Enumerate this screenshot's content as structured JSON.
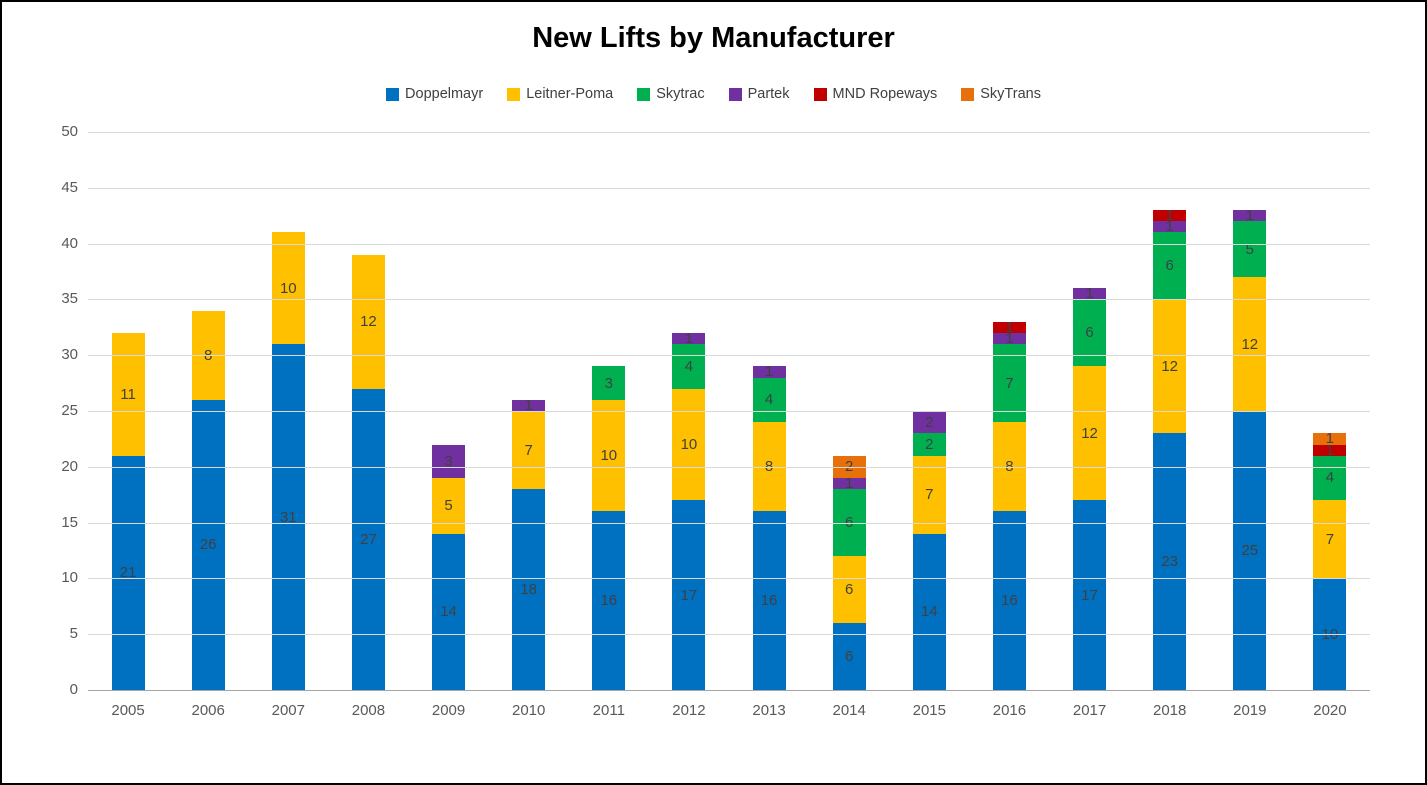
{
  "chart_data": {
    "type": "bar",
    "stacked": true,
    "title": "New Lifts by Manufacturer",
    "xlabel": "",
    "ylabel": "",
    "ylim": [
      0,
      50
    ],
    "ytick_step": 5,
    "grid": true,
    "legend_position": "top",
    "categories": [
      "2005",
      "2006",
      "2007",
      "2008",
      "2009",
      "2010",
      "2011",
      "2012",
      "2013",
      "2014",
      "2015",
      "2016",
      "2017",
      "2018",
      "2019",
      "2020"
    ],
    "series": [
      {
        "name": "Doppelmayr",
        "color": "#0070C0",
        "values": [
          21,
          26,
          31,
          27,
          14,
          18,
          16,
          17,
          16,
          6,
          14,
          16,
          17,
          23,
          25,
          10
        ]
      },
      {
        "name": "Leitner-Poma",
        "color": "#FFC000",
        "values": [
          11,
          8,
          10,
          12,
          5,
          7,
          10,
          10,
          8,
          6,
          7,
          8,
          12,
          12,
          12,
          7
        ]
      },
      {
        "name": "Skytrac",
        "color": "#00B050",
        "values": [
          0,
          0,
          0,
          0,
          0,
          0,
          3,
          4,
          4,
          6,
          2,
          7,
          6,
          6,
          5,
          4
        ]
      },
      {
        "name": "Partek",
        "color": "#7030A0",
        "values": [
          0,
          0,
          0,
          0,
          3,
          1,
          0,
          1,
          1,
          1,
          2,
          1,
          1,
          1,
          1,
          0
        ]
      },
      {
        "name": "MND Ropeways",
        "color": "#C00000",
        "values": [
          0,
          0,
          0,
          0,
          0,
          0,
          0,
          0,
          0,
          0,
          0,
          1,
          0,
          1,
          0,
          1
        ]
      },
      {
        "name": "SkyTrans",
        "color": "#E8700A",
        "values": [
          0,
          0,
          0,
          0,
          0,
          0,
          0,
          0,
          0,
          2,
          0,
          0,
          0,
          0,
          0,
          1
        ]
      }
    ],
    "totals": [
      32,
      34,
      41,
      39,
      22,
      26,
      29,
      32,
      29,
      21,
      25,
      33,
      36,
      43,
      43,
      23
    ]
  },
  "colors": {
    "background": "#FFFFFF",
    "frame_border": "#000000",
    "gridline": "#D9D9D9",
    "axis_line": "#A6A6A6",
    "tick_label": "#595959",
    "data_label": "#404040",
    "title": "#000000"
  }
}
